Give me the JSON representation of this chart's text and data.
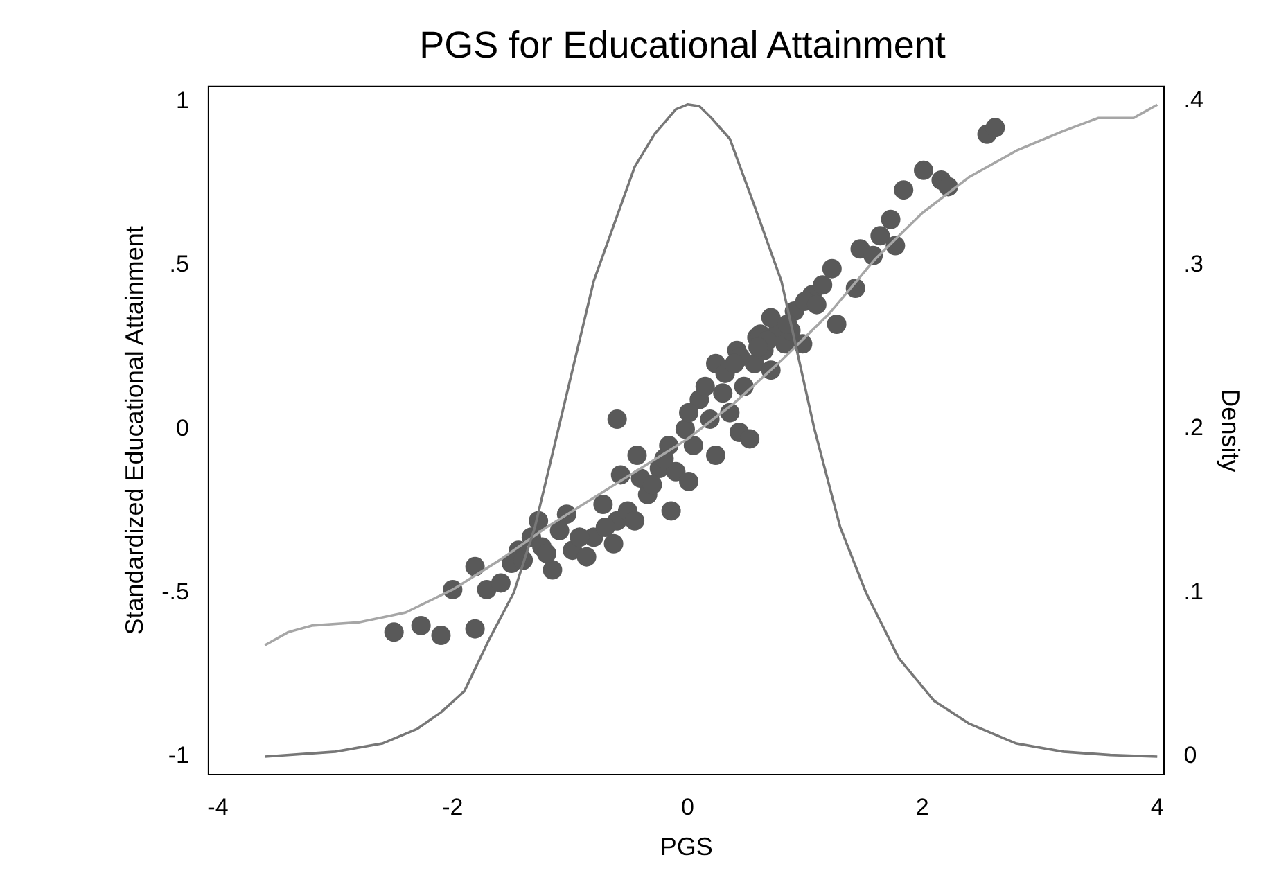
{
  "chart_data": {
    "type": "scatter",
    "title": "PGS for Educational Attainment",
    "xlabel": "PGS",
    "ylabel": "Standardized Educational Attainment",
    "y2label": "Density",
    "xlim": [
      -4.08,
      4.06
    ],
    "xticks": [
      -4,
      -2,
      0,
      2,
      4
    ],
    "ylim": [
      -1.055,
      1.046
    ],
    "yticks": [
      {
        "value": -1,
        "label": "-1"
      },
      {
        "value": -0.5,
        "label": "-.5"
      },
      0,
      {
        "value": 0.5,
        "label": ".5"
      },
      1
    ],
    "y2lim": [
      -0.011,
      0.409
    ],
    "y2ticks": [
      0,
      {
        "value": 0.1,
        "label": ".1"
      },
      {
        "value": 0.2,
        "label": ".2"
      },
      {
        "value": 0.3,
        "label": ".3"
      },
      {
        "value": 0.4,
        "label": ".4"
      }
    ],
    "grid": false,
    "legend": false,
    "series": [
      {
        "type": "line",
        "axis": "y2",
        "color": "#777777",
        "marker": "none",
        "line_style": "solid",
        "x": [
          -3.6,
          -3.0,
          -2.6,
          -2.3,
          -2.1,
          -1.9,
          -1.7,
          -1.48,
          -1.3,
          -1.1,
          -0.95,
          -0.8,
          -0.6,
          -0.45,
          -0.28,
          -0.1,
          0.0,
          0.1,
          0.2,
          0.36,
          0.55,
          0.8,
          1.08,
          1.3,
          1.52,
          1.8,
          2.1,
          2.4,
          2.8,
          3.2,
          3.6,
          4.0
        ],
        "values": [
          0,
          0.003,
          0.008,
          0.017,
          0.027,
          0.04,
          0.07,
          0.1,
          0.14,
          0.2,
          0.245,
          0.29,
          0.33,
          0.36,
          0.38,
          0.395,
          0.398,
          0.397,
          0.39,
          0.377,
          0.34,
          0.29,
          0.2,
          0.14,
          0.1,
          0.06,
          0.034,
          0.02,
          0.008,
          0.003,
          0.001,
          0
        ]
      },
      {
        "type": "line",
        "color": "#a6a6a6",
        "marker": "none",
        "line_style": "solid",
        "x": [
          -3.6,
          -3.4,
          -3.2,
          -2.8,
          -2.4,
          -2.0,
          -1.6,
          -1.2,
          -0.8,
          -0.4,
          0,
          0.4,
          0.8,
          1.2,
          1.6,
          2.0,
          2.4,
          2.8,
          3.2,
          3.5,
          3.8,
          4.0
        ],
        "values": [
          -0.66,
          -0.62,
          -0.6,
          -0.59,
          -0.56,
          -0.49,
          -0.4,
          -0.3,
          -0.21,
          -0.12,
          -0.03,
          0.08,
          0.21,
          0.35,
          0.52,
          0.66,
          0.77,
          0.85,
          0.91,
          0.95,
          0.95,
          0.99
        ]
      },
      {
        "color": "#595959",
        "marker": "circle",
        "x": [
          -2.5,
          -2.27,
          -2.1,
          -1.81,
          -2.0,
          -1.81,
          -1.71,
          -1.59,
          -1.44,
          -1.33,
          -1.24,
          -1.15,
          -1.03,
          -0.98,
          -0.86,
          -0.8,
          -0.72,
          -0.63,
          -0.6,
          -0.51,
          -0.45,
          -0.6,
          -0.4,
          -0.34,
          -0.24,
          -0.16,
          -0.1,
          -0.14,
          -0.02,
          0.05,
          0.1,
          0.19,
          0.24,
          0.3,
          0.36,
          0.44,
          0.48,
          0.53,
          0.57,
          0.65,
          0.71,
          0.77,
          0.83,
          0.98,
          0.91,
          1.06,
          1.15,
          1.23,
          1.27,
          1.43,
          1.47,
          1.58,
          1.64,
          1.73,
          1.77,
          1.84,
          2.01,
          2.16,
          2.22,
          2.55,
          2.62,
          -0.57,
          -0.43,
          0.01,
          0.15,
          0.24,
          0.42,
          0.59,
          0.71,
          0.88,
          -0.92,
          -1.09,
          -1.27,
          -1.5,
          0.01,
          -0.3,
          -0.2,
          0.32,
          0.45,
          0.62,
          0.68,
          0.85,
          1.0,
          1.1,
          -0.7,
          -1.2,
          -1.4,
          0.4,
          0.6
        ],
        "values": [
          -0.62,
          -0.6,
          -0.63,
          -0.61,
          -0.49,
          -0.42,
          -0.49,
          -0.47,
          -0.37,
          -0.33,
          -0.36,
          -0.43,
          -0.26,
          -0.37,
          -0.39,
          -0.33,
          -0.23,
          -0.35,
          -0.28,
          -0.25,
          -0.28,
          0.03,
          -0.15,
          -0.2,
          -0.12,
          -0.05,
          -0.13,
          -0.25,
          0.0,
          -0.05,
          0.09,
          0.03,
          -0.08,
          0.11,
          0.05,
          -0.01,
          0.13,
          -0.03,
          0.2,
          0.24,
          0.18,
          0.3,
          0.26,
          0.26,
          0.36,
          0.41,
          0.44,
          0.49,
          0.32,
          0.43,
          0.55,
          0.53,
          0.59,
          0.64,
          0.56,
          0.73,
          0.79,
          0.76,
          0.74,
          0.9,
          0.92,
          -0.14,
          -0.08,
          0.05,
          0.13,
          0.2,
          0.24,
          0.28,
          0.34,
          0.3,
          -0.33,
          -0.31,
          -0.28,
          -0.41,
          -0.16,
          -0.17,
          -0.09,
          0.17,
          0.22,
          0.29,
          0.27,
          0.32,
          0.39,
          0.38,
          -0.3,
          -0.38,
          -0.4,
          0.2,
          0.25
        ]
      }
    ]
  }
}
